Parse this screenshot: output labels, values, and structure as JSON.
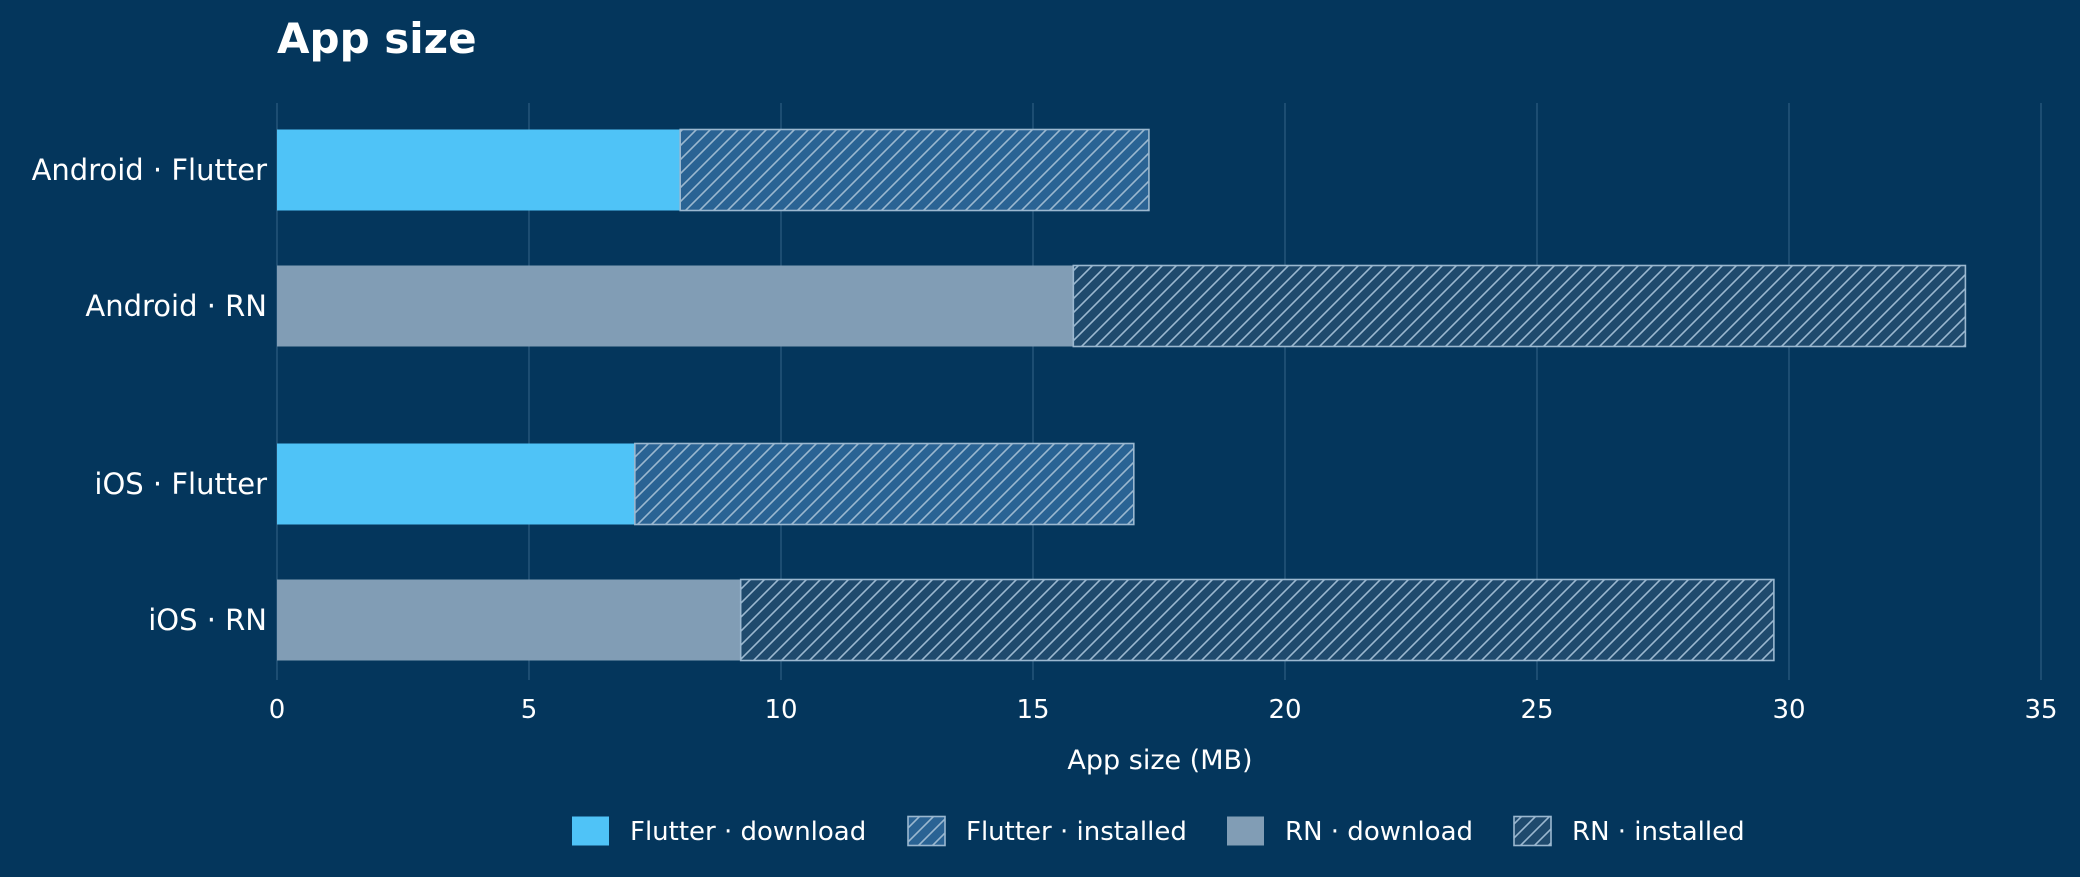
{
  "chart_data": {
    "type": "bar",
    "orientation": "horizontal",
    "stacked": true,
    "title": "App size",
    "xlabel": "App size (MB)",
    "ylabel": "",
    "xlim": [
      0,
      35
    ],
    "xticks": [
      0,
      5,
      10,
      15,
      20,
      25,
      30,
      35
    ],
    "grid": true,
    "legend_position": "bottom",
    "categories": [
      "Android · Flutter",
      "Android · RN",
      "iOS · Flutter",
      "iOS · RN"
    ],
    "bars": [
      {
        "category": "Android · Flutter",
        "framework": "Flutter",
        "download": 8.0,
        "installed": 17.3
      },
      {
        "category": "Android · RN",
        "framework": "RN",
        "download": 15.8,
        "installed": 33.5
      },
      {
        "category": "iOS · Flutter",
        "framework": "Flutter",
        "download": 7.1,
        "installed": 17.0
      },
      {
        "category": "iOS · RN",
        "framework": "RN",
        "download": 9.2,
        "installed": 29.7
      }
    ],
    "legend": [
      {
        "label": "Flutter · download",
        "framework": "Flutter",
        "kind": "download"
      },
      {
        "label": "Flutter · installed",
        "framework": "Flutter",
        "kind": "installed"
      },
      {
        "label": "RN · download",
        "framework": "RN",
        "kind": "download"
      },
      {
        "label": "RN · installed",
        "framework": "RN",
        "kind": "installed"
      }
    ],
    "colors": {
      "background": "#04365c",
      "flutter": "#4fc3f7",
      "rn": "#819db5",
      "hatch_stroke": "#9bb8d0",
      "grid": "#2b5a7e",
      "text": "#ffffff"
    }
  }
}
